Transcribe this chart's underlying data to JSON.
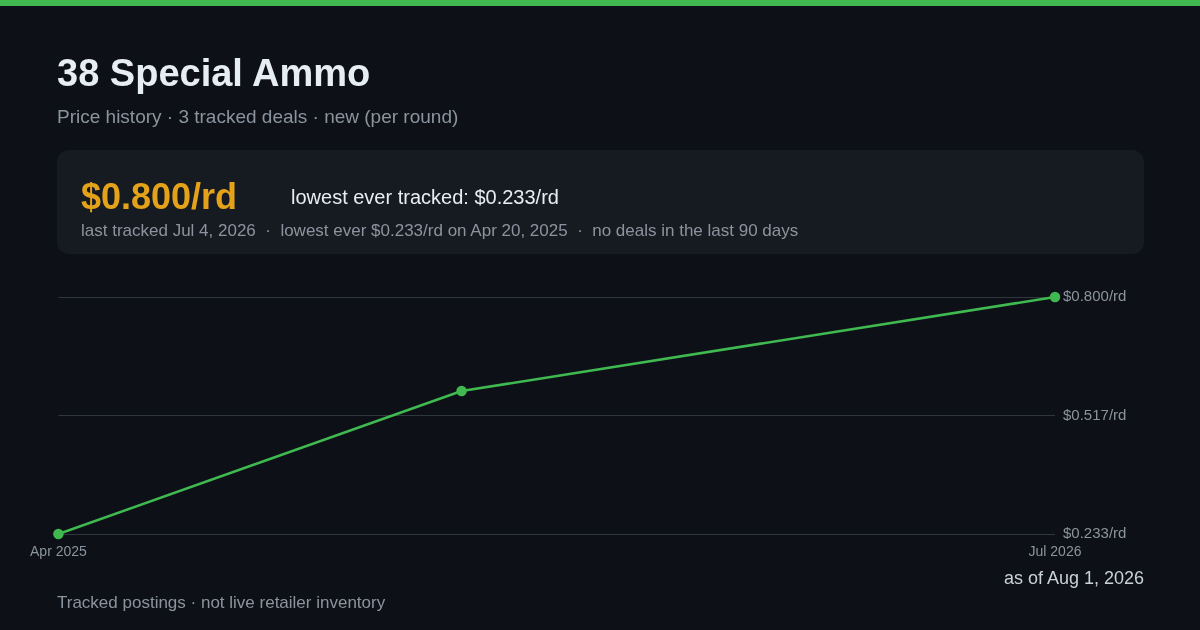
{
  "chart_data": {
    "type": "line",
    "title": "38 Special Ammo",
    "subtitle": "Price history · 3 tracked deals · new (per round)",
    "annotations": [
      "$0.800/rd",
      "lowest ever tracked: $0.233/rd",
      "last tracked Jul 4, 2026  ·  lowest ever $0.233/rd on Apr 20, 2025  ·  no deals in the last 90 days",
      "as of Aug 1, 2026",
      "Tracked postings · not live retailer inventory"
    ],
    "x": [
      "2025-04-20",
      "2025-10-15",
      "2026-07-04"
    ],
    "series": [
      {
        "color": "#3fb950",
        "values": [
          0.233,
          0.575,
          0.8
        ]
      }
    ],
    "xlim": [
      "2025-04-20",
      "2026-07-04"
    ],
    "xticks": [
      {
        "value": "2025-04-20",
        "label": "Apr 2025"
      },
      {
        "value": "2026-07-04",
        "label": "Jul 2026"
      }
    ],
    "ylim": [
      0.233,
      0.8
    ],
    "yticks": [
      {
        "value": 0.233,
        "label": "$0.233/rd"
      },
      {
        "value": 0.5165,
        "label": "$0.517/rd"
      },
      {
        "value": 0.8,
        "label": "$0.800/rd"
      }
    ],
    "grid": "y",
    "legend": false,
    "marker": "circle",
    "line_style": "solid"
  }
}
